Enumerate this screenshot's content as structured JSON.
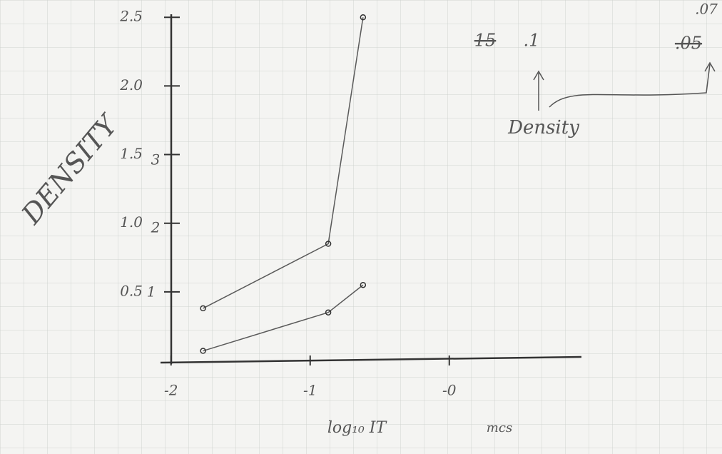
{
  "chart_data": {
    "type": "line",
    "y_label": "DENSITY",
    "x_label": "log₁₀ IT",
    "x": [
      -1.77,
      -0.87,
      -0.62
    ],
    "series": [
      {
        "name": null,
        "color": "#5a5a5a",
        "values": [
          0.38,
          0.85,
          2.5
        ]
      },
      {
        "name": null,
        "color": "#5a5a5a",
        "values": [
          0.07,
          0.35,
          0.55
        ]
      }
    ],
    "xlim": [
      -2.05,
      0.95
    ],
    "ylim": [
      0,
      2.6
    ],
    "xticks": [
      -2,
      -1,
      {
        "value": 0,
        "label": "-0"
      }
    ],
    "yticks": [
      0.5,
      {
        "value": 1,
        "label": "1.0"
      },
      1.5,
      {
        "value": 2,
        "label": "2.0"
      },
      2.5
    ],
    "annotations": [
      "mcs",
      "15",
      ".1",
      ".05",
      ".07",
      "Density",
      "3",
      "2",
      "1"
    ]
  }
}
